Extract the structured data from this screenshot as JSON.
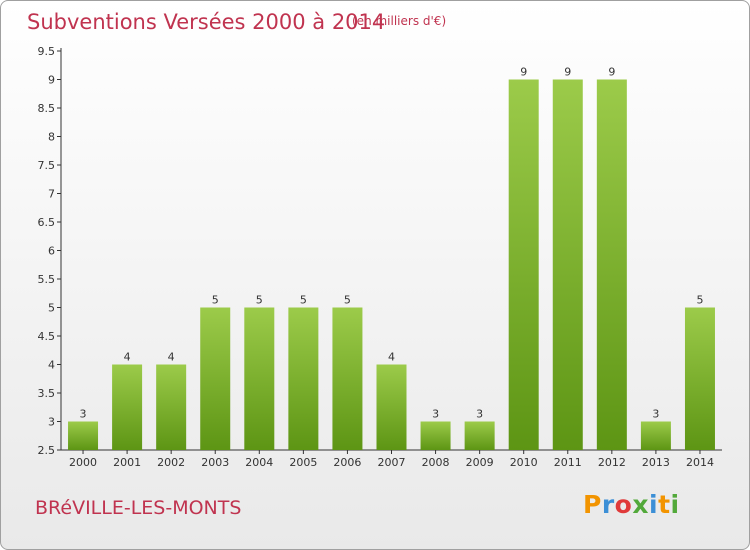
{
  "title": "Subventions Versées 2000 à 2014",
  "subtitle": "(en milliers d'€)",
  "commune": "BRéVILLE-LES-MONTS",
  "logo": {
    "letters": [
      "P",
      "r",
      "o",
      "x",
      "i",
      "t",
      "i"
    ],
    "colors": [
      "#f29400",
      "#3c8fd6",
      "#e03a3a",
      "#52a93a",
      "#3c8fd6",
      "#f29400",
      "#52a93a"
    ]
  },
  "colors": {
    "bar_top": "#9ccb4a",
    "bar_bottom": "#5d9514",
    "title": "#c0334f"
  },
  "chart_data": {
    "type": "bar",
    "categories": [
      "2000",
      "2001",
      "2002",
      "2003",
      "2004",
      "2005",
      "2006",
      "2007",
      "2008",
      "2009",
      "2010",
      "2011",
      "2012",
      "2013",
      "2014"
    ],
    "values": [
      3,
      4,
      4,
      5,
      5,
      5,
      5,
      4,
      3,
      3,
      9,
      9,
      9,
      3,
      5
    ],
    "y_ticks": [
      "2.5",
      "3",
      "3.5",
      "4",
      "4.5",
      "5",
      "5.5",
      "6",
      "6.5",
      "7",
      "7.5",
      "8",
      "8.5",
      "9",
      "9.5"
    ],
    "ylim": [
      2.5,
      9.5
    ],
    "grid": false
  }
}
